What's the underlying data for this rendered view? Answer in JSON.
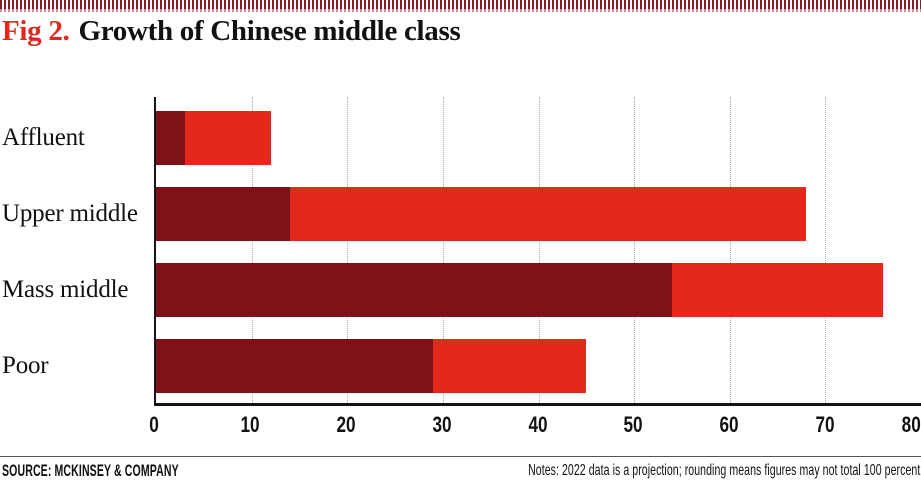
{
  "title": {
    "fig_label": "Fig 2.",
    "text": "Growth of Chinese middle class"
  },
  "chart_data": {
    "type": "bar",
    "orientation": "horizontal",
    "stacked": true,
    "categories": [
      "Affluent",
      "Upper middle",
      "Mass middle",
      "Poor"
    ],
    "series": [
      {
        "name": "dark-red base segment",
        "color": "#7f1119",
        "values": [
          3,
          14,
          54,
          29
        ]
      },
      {
        "name": "bright-red extension segment (2022 projection)",
        "color": "#e2291b",
        "values": [
          9,
          54,
          22,
          16
        ]
      }
    ],
    "totals": [
      12,
      68,
      76,
      45
    ],
    "xlabel": "",
    "ylabel": "",
    "xlim": [
      0,
      80
    ],
    "x_ticks": [
      0,
      10,
      20,
      30,
      40,
      50,
      60,
      70,
      80
    ],
    "gridlines": "vertical dotted every 10",
    "legend_position": "none"
  },
  "footer": {
    "source": "SOURCE: MCKINSEY & COMPANY",
    "notes": "Notes: 2022 data is a projection; rounding means figures may not total 100 percent"
  },
  "colors": {
    "dark_red": "#7f1119",
    "bright_red": "#e2291b",
    "stripe_red": "#8b1a2b",
    "title_red": "#e0281c",
    "axis_black": "#141414",
    "gridline_gray": "#a9a9a9",
    "rule_gray": "#555555"
  }
}
